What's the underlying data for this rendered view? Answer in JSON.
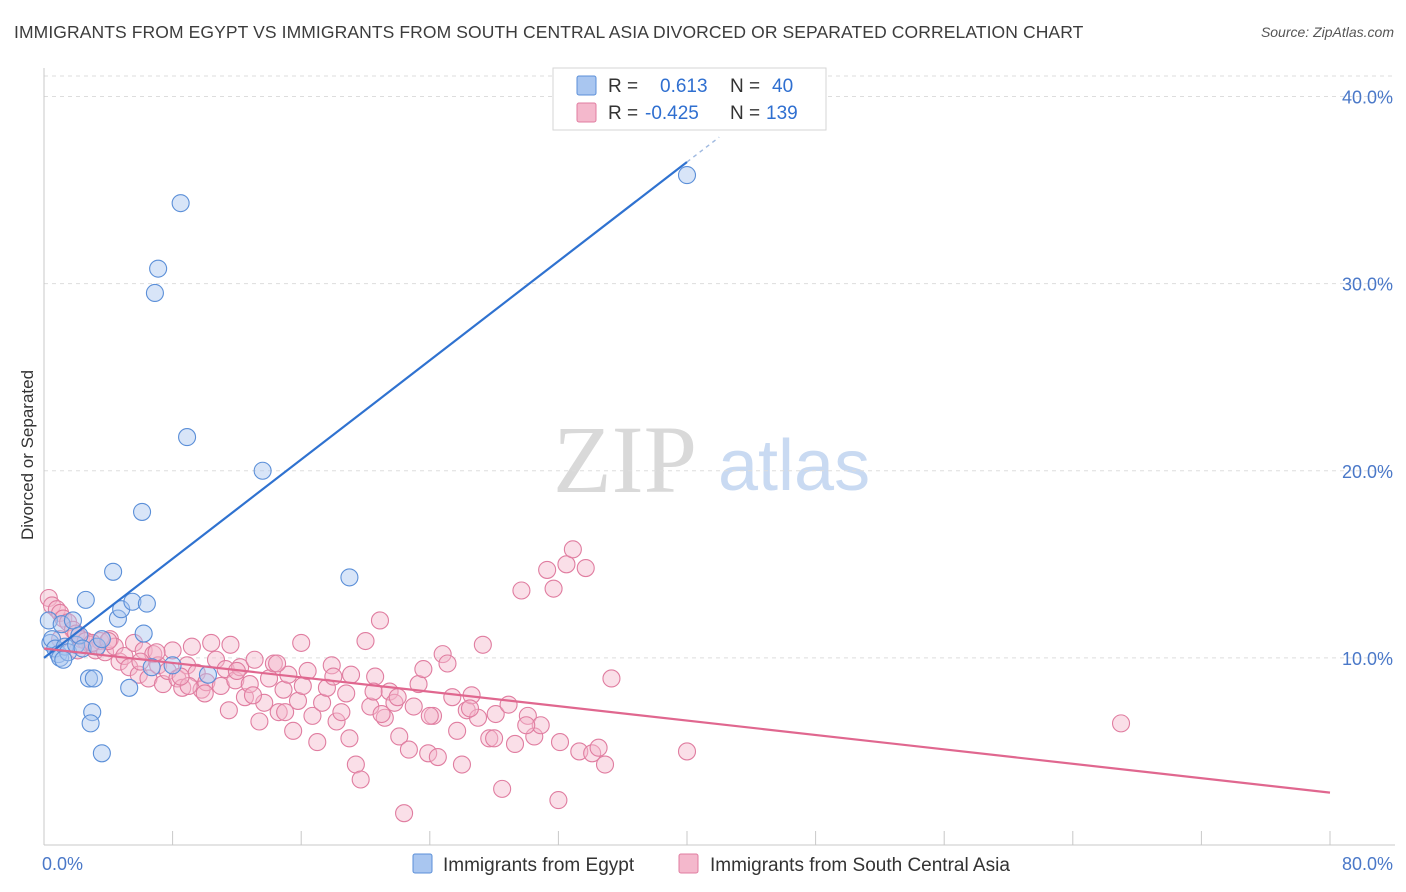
{
  "header": {
    "title": "IMMIGRANTS FROM EGYPT VS IMMIGRANTS FROM SOUTH CENTRAL ASIA DIVORCED OR SEPARATED CORRELATION CHART",
    "source": "Source: ZipAtlas.com"
  },
  "watermark": {
    "zip": "ZIP",
    "atlas": "atlas"
  },
  "legend": {
    "r_label": "R =",
    "n_label": "N =",
    "egypt": {
      "r": "0.613",
      "n": "40"
    },
    "sca": {
      "r": "-0.425",
      "n": "139"
    }
  },
  "bottom_legend": {
    "egypt": "Immigrants from Egypt",
    "sca": "Immigrants from South Central Asia"
  },
  "colors": {
    "egypt_fill": "#a9c6f0",
    "egypt_stroke": "#5b8fd8",
    "egypt_line": "#2f72d0",
    "sca_fill": "#f4b8cc",
    "sca_stroke": "#e07da0",
    "sca_line": "#e0678f",
    "tick": "#4a78c8",
    "grid": "#dddddd"
  },
  "chart_data": {
    "type": "scatter",
    "title": "IMMIGRANTS FROM EGYPT VS IMMIGRANTS FROM SOUTH CENTRAL ASIA DIVORCED OR SEPARATED CORRELATION CHART",
    "xlabel": "",
    "ylabel": "Divorced or Separated",
    "xlim": [
      0,
      80
    ],
    "ylim": [
      0,
      42
    ],
    "x_tick_labels": [
      "0.0%",
      "80.0%"
    ],
    "y_ticks": [
      10,
      20,
      30,
      40
    ],
    "y_tick_labels": [
      "10.0%",
      "20.0%",
      "30.0%",
      "40.0%"
    ],
    "grid": true,
    "legend_position": "top-center",
    "series": [
      {
        "name": "Immigrants from Egypt",
        "r": 0.613,
        "n": 40,
        "trend": {
          "x": [
            0,
            40.0
          ],
          "y": [
            10.0,
            36.5
          ]
        },
        "points": [
          [
            0.3,
            12.0
          ],
          [
            0.4,
            10.8
          ],
          [
            0.5,
            11.0
          ],
          [
            0.7,
            10.5
          ],
          [
            0.9,
            10.2
          ],
          [
            1.0,
            10.0
          ],
          [
            1.1,
            11.8
          ],
          [
            1.3,
            10.6
          ],
          [
            1.5,
            10.3
          ],
          [
            1.8,
            12.0
          ],
          [
            2.0,
            10.7
          ],
          [
            2.2,
            11.2
          ],
          [
            2.4,
            10.5
          ],
          [
            2.6,
            13.1
          ],
          [
            2.8,
            8.9
          ],
          [
            3.1,
            8.9
          ],
          [
            3.3,
            10.6
          ],
          [
            3.6,
            11.0
          ],
          [
            4.3,
            14.6
          ],
          [
            4.6,
            12.1
          ],
          [
            4.8,
            12.6
          ],
          [
            5.3,
            8.4
          ],
          [
            5.5,
            13.0
          ],
          [
            6.1,
            17.8
          ],
          [
            6.2,
            11.3
          ],
          [
            6.4,
            12.9
          ],
          [
            6.7,
            9.5
          ],
          [
            6.9,
            29.5
          ],
          [
            7.1,
            30.8
          ],
          [
            8.5,
            34.3
          ],
          [
            8.9,
            21.8
          ],
          [
            3.0,
            7.1
          ],
          [
            2.9,
            6.5
          ],
          [
            3.6,
            4.9
          ],
          [
            13.6,
            20.0
          ],
          [
            19.0,
            14.3
          ],
          [
            10.2,
            9.1
          ],
          [
            40.0,
            35.8
          ],
          [
            1.2,
            9.9
          ],
          [
            8.0,
            9.6
          ]
        ]
      },
      {
        "name": "Immigrants from South Central Asia",
        "r": -0.425,
        "n": 139,
        "trend": {
          "x": [
            0,
            80.0
          ],
          "y": [
            10.5,
            2.8
          ]
        },
        "points": [
          [
            0.3,
            13.2
          ],
          [
            0.5,
            12.8
          ],
          [
            0.8,
            12.6
          ],
          [
            1.0,
            12.4
          ],
          [
            1.2,
            12.1
          ],
          [
            1.5,
            11.9
          ],
          [
            1.8,
            11.5
          ],
          [
            2.0,
            11.3
          ],
          [
            2.3,
            11.0
          ],
          [
            2.6,
            10.9
          ],
          [
            2.9,
            10.7
          ],
          [
            3.2,
            10.4
          ],
          [
            3.5,
            10.9
          ],
          [
            3.8,
            10.3
          ],
          [
            4.1,
            11.0
          ],
          [
            4.4,
            10.6
          ],
          [
            4.7,
            9.8
          ],
          [
            5.0,
            10.1
          ],
          [
            5.3,
            9.5
          ],
          [
            5.6,
            10.8
          ],
          [
            5.9,
            9.1
          ],
          [
            6.2,
            10.4
          ],
          [
            6.5,
            8.9
          ],
          [
            6.8,
            10.2
          ],
          [
            7.1,
            9.6
          ],
          [
            7.4,
            8.6
          ],
          [
            7.7,
            9.3
          ],
          [
            8.0,
            10.4
          ],
          [
            8.3,
            8.9
          ],
          [
            8.6,
            8.4
          ],
          [
            8.9,
            9.6
          ],
          [
            9.2,
            10.6
          ],
          [
            9.5,
            9.2
          ],
          [
            9.8,
            8.3
          ],
          [
            10.1,
            8.7
          ],
          [
            10.4,
            10.8
          ],
          [
            10.7,
            9.9
          ],
          [
            11.0,
            8.5
          ],
          [
            11.3,
            9.4
          ],
          [
            11.6,
            10.7
          ],
          [
            11.9,
            8.8
          ],
          [
            12.2,
            9.5
          ],
          [
            12.5,
            7.9
          ],
          [
            12.8,
            8.6
          ],
          [
            13.1,
            9.9
          ],
          [
            13.4,
            6.6
          ],
          [
            13.7,
            7.6
          ],
          [
            14.0,
            8.9
          ],
          [
            14.3,
            9.7
          ],
          [
            14.6,
            7.1
          ],
          [
            14.9,
            8.3
          ],
          [
            15.2,
            9.1
          ],
          [
            15.5,
            6.1
          ],
          [
            15.8,
            7.7
          ],
          [
            16.1,
            8.5
          ],
          [
            16.4,
            9.3
          ],
          [
            16.7,
            6.9
          ],
          [
            17.0,
            5.5
          ],
          [
            17.3,
            7.6
          ],
          [
            17.6,
            8.4
          ],
          [
            17.9,
            9.6
          ],
          [
            18.2,
            6.6
          ],
          [
            18.5,
            7.1
          ],
          [
            18.8,
            8.1
          ],
          [
            19.1,
            9.1
          ],
          [
            19.4,
            4.3
          ],
          [
            19.7,
            3.5
          ],
          [
            20.0,
            10.9
          ],
          [
            20.3,
            7.4
          ],
          [
            20.6,
            9.0
          ],
          [
            20.9,
            12.0
          ],
          [
            21.2,
            6.8
          ],
          [
            21.5,
            8.2
          ],
          [
            21.8,
            7.6
          ],
          [
            22.1,
            5.8
          ],
          [
            22.4,
            1.7
          ],
          [
            22.7,
            5.1
          ],
          [
            23.0,
            7.4
          ],
          [
            23.3,
            8.6
          ],
          [
            23.6,
            9.4
          ],
          [
            23.9,
            4.9
          ],
          [
            24.2,
            6.9
          ],
          [
            24.5,
            4.7
          ],
          [
            24.8,
            10.2
          ],
          [
            25.1,
            9.7
          ],
          [
            25.4,
            7.9
          ],
          [
            25.7,
            6.1
          ],
          [
            26.0,
            4.3
          ],
          [
            26.3,
            7.2
          ],
          [
            26.6,
            8.0
          ],
          [
            27.0,
            6.8
          ],
          [
            27.3,
            10.7
          ],
          [
            27.7,
            5.7
          ],
          [
            28.1,
            7.0
          ],
          [
            28.5,
            3.0
          ],
          [
            28.9,
            7.5
          ],
          [
            29.3,
            5.4
          ],
          [
            29.7,
            13.6
          ],
          [
            30.1,
            6.9
          ],
          [
            30.5,
            5.8
          ],
          [
            30.9,
            6.4
          ],
          [
            31.3,
            14.7
          ],
          [
            31.7,
            13.7
          ],
          [
            32.1,
            5.5
          ],
          [
            32.5,
            15.0
          ],
          [
            32.9,
            15.8
          ],
          [
            33.3,
            5.0
          ],
          [
            33.7,
            14.8
          ],
          [
            34.1,
            4.9
          ],
          [
            34.5,
            5.2
          ],
          [
            34.9,
            4.3
          ],
          [
            35.3,
            8.9
          ],
          [
            32.0,
            2.4
          ],
          [
            40.0,
            5.0
          ],
          [
            67.0,
            6.5
          ],
          [
            1.0,
            11.0
          ],
          [
            2.1,
            10.4
          ],
          [
            3.0,
            10.8
          ],
          [
            4.0,
            10.9
          ],
          [
            6.0,
            9.8
          ],
          [
            7.0,
            10.3
          ],
          [
            9.0,
            8.5
          ],
          [
            12.0,
            9.3
          ],
          [
            14.5,
            9.7
          ],
          [
            16.0,
            10.8
          ],
          [
            18.0,
            9.0
          ],
          [
            20.5,
            8.2
          ],
          [
            22.0,
            7.9
          ],
          [
            24.0,
            6.9
          ],
          [
            26.5,
            7.3
          ],
          [
            28.0,
            5.7
          ],
          [
            30.0,
            6.4
          ],
          [
            21.0,
            7.0
          ],
          [
            19.0,
            5.7
          ],
          [
            15.0,
            7.1
          ],
          [
            13.0,
            8.0
          ],
          [
            11.5,
            7.2
          ],
          [
            10.0,
            8.1
          ],
          [
            8.5,
            9.0
          ]
        ]
      }
    ]
  }
}
